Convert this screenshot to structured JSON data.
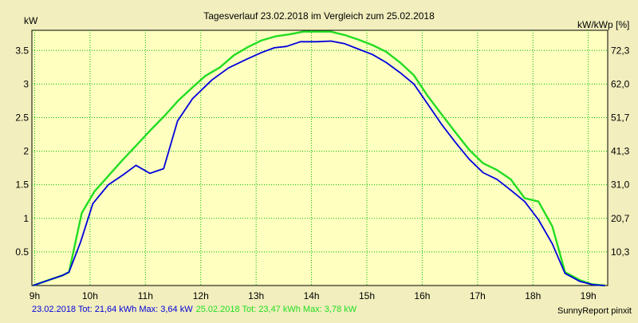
{
  "chart_data": {
    "type": "line",
    "title": "Tagesverlauf 23.02.2018 im Vergleich zum 25.02.2018",
    "ylabel_left": "kW",
    "ylabel_right": "kW/kWp [%]",
    "xlim": [
      8.95,
      19.35
    ],
    "ylim": [
      0,
      3.8
    ],
    "grid": true,
    "x_ticks": [
      {
        "x": 9,
        "label": "9h"
      },
      {
        "x": 10,
        "label": "10h"
      },
      {
        "x": 11,
        "label": "11h"
      },
      {
        "x": 12,
        "label": "12h"
      },
      {
        "x": 13,
        "label": "13h"
      },
      {
        "x": 14,
        "label": "14h"
      },
      {
        "x": 15,
        "label": "15h"
      },
      {
        "x": 16,
        "label": "16h"
      },
      {
        "x": 17,
        "label": "17h"
      },
      {
        "x": 18,
        "label": "18h"
      },
      {
        "x": 19,
        "label": "19h"
      }
    ],
    "y_ticks_left": [
      {
        "y": 0.5,
        "label": "0.5"
      },
      {
        "y": 1,
        "label": "1"
      },
      {
        "y": 1.5,
        "label": "1.5"
      },
      {
        "y": 2,
        "label": "2"
      },
      {
        "y": 2.5,
        "label": "2.5"
      },
      {
        "y": 3,
        "label": "3"
      },
      {
        "y": 3.5,
        "label": "3.5"
      }
    ],
    "y_ticks_right": [
      {
        "y": 0.5,
        "label": "10,3"
      },
      {
        "y": 1,
        "label": "20,7"
      },
      {
        "y": 1.5,
        "label": "31,0"
      },
      {
        "y": 2,
        "label": "41,3"
      },
      {
        "y": 2.5,
        "label": "51,7"
      },
      {
        "y": 3,
        "label": "62,0"
      },
      {
        "y": 3.5,
        "label": "72,3"
      }
    ],
    "series": [
      {
        "name": "23.02.2018",
        "color": "#0000dd",
        "points": [
          [
            8.97,
            0.0
          ],
          [
            9.25,
            0.08
          ],
          [
            9.5,
            0.15
          ],
          [
            9.62,
            0.2
          ],
          [
            9.83,
            0.65
          ],
          [
            10.05,
            1.22
          ],
          [
            10.33,
            1.5
          ],
          [
            10.6,
            1.65
          ],
          [
            10.83,
            1.79
          ],
          [
            11.08,
            1.67
          ],
          [
            11.33,
            1.74
          ],
          [
            11.58,
            2.45
          ],
          [
            11.85,
            2.78
          ],
          [
            12.2,
            3.06
          ],
          [
            12.5,
            3.24
          ],
          [
            12.83,
            3.37
          ],
          [
            13.1,
            3.47
          ],
          [
            13.33,
            3.54
          ],
          [
            13.55,
            3.56
          ],
          [
            13.8,
            3.63
          ],
          [
            14.1,
            3.63
          ],
          [
            14.35,
            3.64
          ],
          [
            14.6,
            3.6
          ],
          [
            14.85,
            3.52
          ],
          [
            15.1,
            3.44
          ],
          [
            15.35,
            3.32
          ],
          [
            15.6,
            3.17
          ],
          [
            15.85,
            3.0
          ],
          [
            16.1,
            2.7
          ],
          [
            16.35,
            2.4
          ],
          [
            16.6,
            2.13
          ],
          [
            16.85,
            1.88
          ],
          [
            17.1,
            1.68
          ],
          [
            17.35,
            1.58
          ],
          [
            17.6,
            1.42
          ],
          [
            17.85,
            1.25
          ],
          [
            18.1,
            0.98
          ],
          [
            18.35,
            0.62
          ],
          [
            18.58,
            0.18
          ],
          [
            18.85,
            0.06
          ],
          [
            19.1,
            0.01
          ],
          [
            19.3,
            0.0
          ]
        ]
      },
      {
        "name": "25.02.2018",
        "color": "#22dd22",
        "points": [
          [
            8.97,
            0.0
          ],
          [
            9.25,
            0.08
          ],
          [
            9.5,
            0.15
          ],
          [
            9.62,
            0.2
          ],
          [
            9.85,
            1.08
          ],
          [
            10.08,
            1.4
          ],
          [
            10.35,
            1.65
          ],
          [
            10.6,
            1.88
          ],
          [
            10.83,
            2.08
          ],
          [
            11.1,
            2.32
          ],
          [
            11.35,
            2.53
          ],
          [
            11.6,
            2.76
          ],
          [
            11.85,
            2.95
          ],
          [
            12.08,
            3.12
          ],
          [
            12.35,
            3.25
          ],
          [
            12.6,
            3.43
          ],
          [
            12.85,
            3.55
          ],
          [
            13.1,
            3.65
          ],
          [
            13.35,
            3.71
          ],
          [
            13.6,
            3.74
          ],
          [
            13.85,
            3.78
          ],
          [
            14.1,
            3.78
          ],
          [
            14.35,
            3.78
          ],
          [
            14.6,
            3.73
          ],
          [
            14.85,
            3.66
          ],
          [
            15.1,
            3.58
          ],
          [
            15.35,
            3.48
          ],
          [
            15.6,
            3.32
          ],
          [
            15.85,
            3.13
          ],
          [
            16.1,
            2.82
          ],
          [
            16.35,
            2.55
          ],
          [
            16.6,
            2.28
          ],
          [
            16.85,
            2.02
          ],
          [
            17.1,
            1.82
          ],
          [
            17.35,
            1.72
          ],
          [
            17.6,
            1.58
          ],
          [
            17.85,
            1.3
          ],
          [
            18.1,
            1.25
          ],
          [
            18.35,
            0.88
          ],
          [
            18.58,
            0.2
          ],
          [
            18.85,
            0.08
          ],
          [
            19.05,
            0.02
          ],
          [
            19.3,
            0.0
          ]
        ]
      }
    ]
  },
  "footer": {
    "series1_text": "23.02.2018 Tot: 21,64 kWh Max: 3,64 kW",
    "series2_text": "25.02.2018 Tot: 23,47 kWh Max: 3,78 kW",
    "series1_color": "#0000dd",
    "series2_color": "#22dd22",
    "credit": "SunnyReport pinxit"
  }
}
